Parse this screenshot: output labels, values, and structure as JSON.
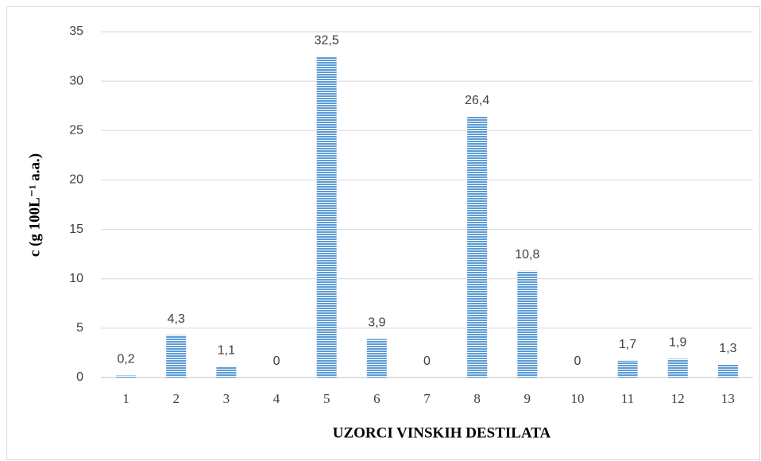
{
  "chart_data": {
    "type": "bar",
    "y_label": "c  (g 100L⁻¹ a.a.)",
    "x_label": "UZORCI VINSKIH DESTILATA",
    "categories": [
      "1",
      "2",
      "3",
      "4",
      "5",
      "6",
      "7",
      "8",
      "9",
      "10",
      "11",
      "12",
      "13"
    ],
    "values": [
      0.2,
      4.3,
      1.1,
      0,
      32.5,
      3.9,
      0,
      26.4,
      10.8,
      0,
      1.7,
      1.9,
      1.3
    ],
    "value_labels": [
      "0,2",
      "4,3",
      "1,1",
      "0",
      "32,5",
      "3,9",
      "0",
      "26,4",
      "10,8",
      "0",
      "1,7",
      "1,9",
      "1,3"
    ],
    "color": "#5b9bd5",
    "ylim": [
      0,
      35
    ],
    "yticks": [
      0,
      5,
      10,
      15,
      20,
      25,
      30,
      35
    ],
    "grid": true
  }
}
